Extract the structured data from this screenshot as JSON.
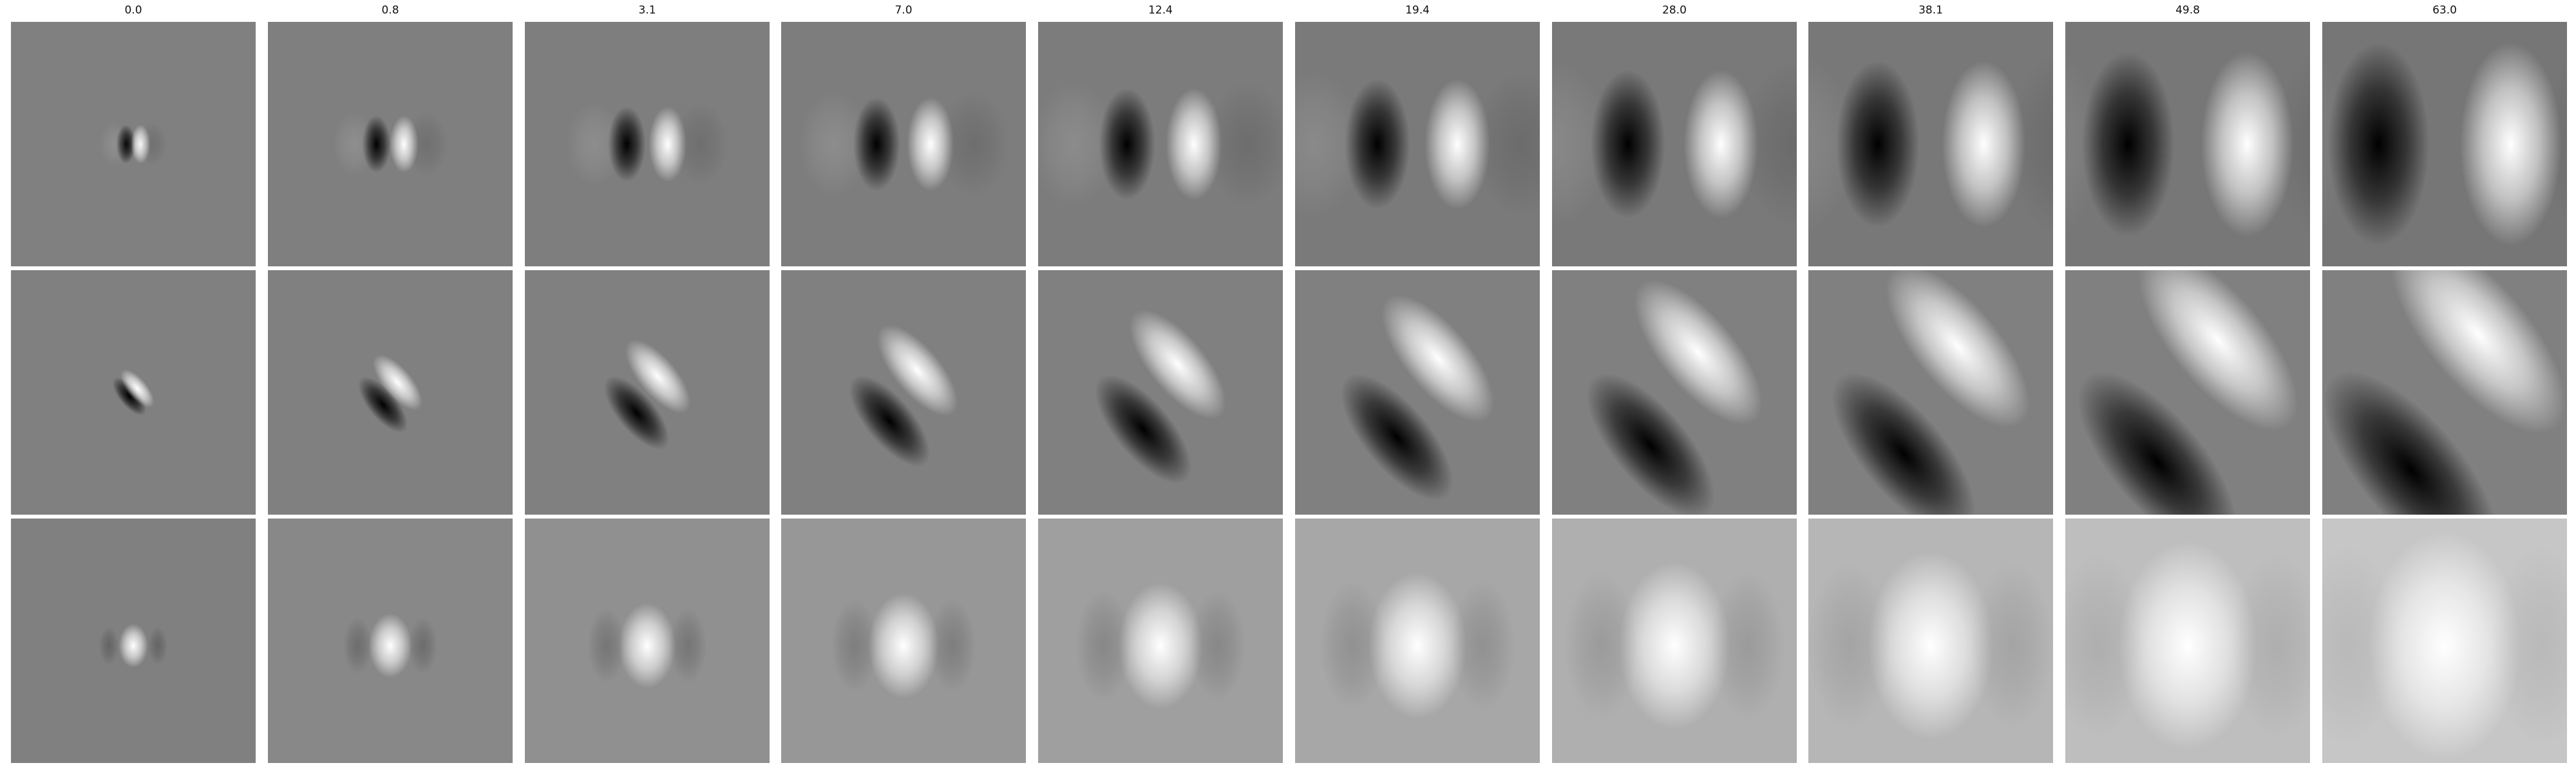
{
  "columns": [
    "0.0",
    "0.8",
    "3.1",
    "7.0",
    "12.4",
    "19.4",
    "28.0",
    "38.1",
    "49.8",
    "63.0"
  ],
  "rows": 3,
  "colormap": "grayscale",
  "background_color": "#ffffff"
}
